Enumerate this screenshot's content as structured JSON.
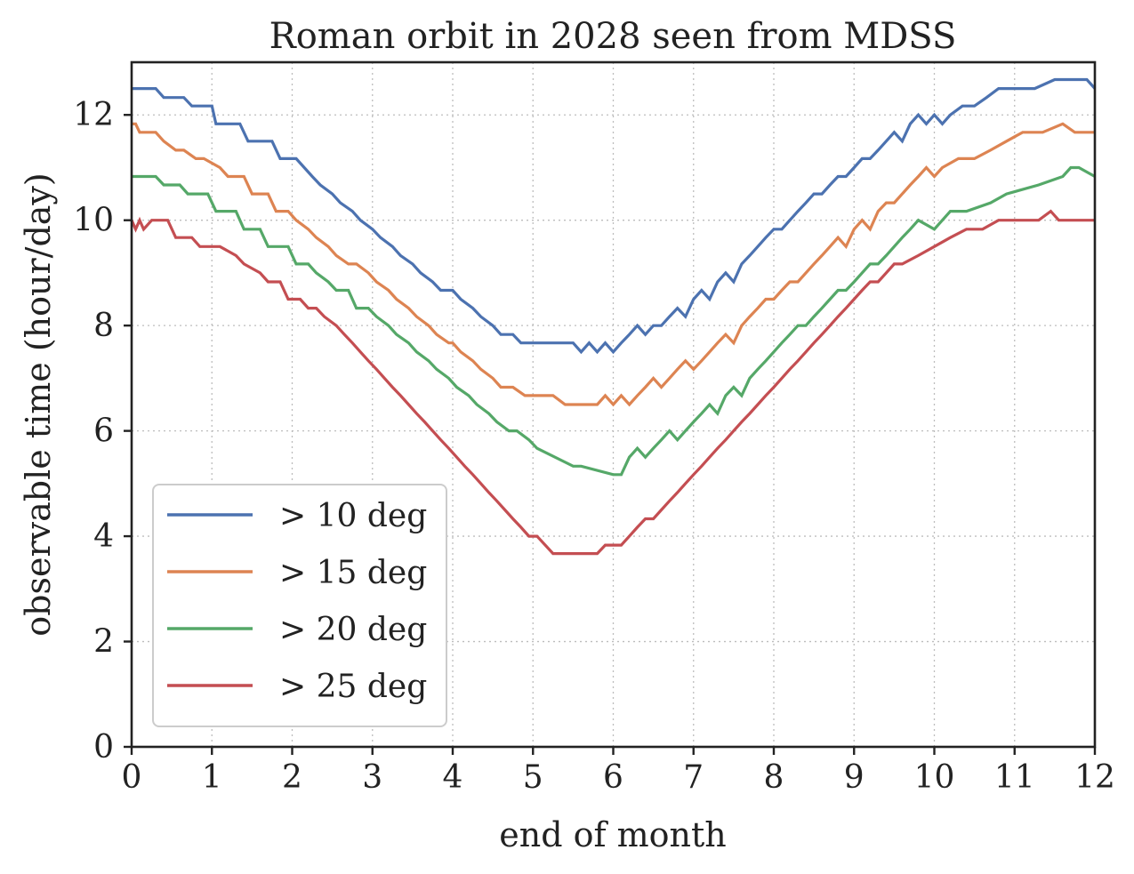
{
  "chart_data": {
    "type": "line",
    "title": "Roman orbit in 2028 seen from MDSS",
    "xlabel": "end of month",
    "ylabel": "observable time (hour/day)",
    "xlim": [
      0,
      12
    ],
    "ylim": [
      0,
      13
    ],
    "xticks": [
      0,
      1,
      2,
      3,
      4,
      5,
      6,
      7,
      8,
      9,
      10,
      11,
      12
    ],
    "yticks": [
      0,
      2,
      4,
      6,
      8,
      10,
      12
    ],
    "grid": true,
    "legend_position": "lower-left",
    "series": [
      {
        "name": "> 10 deg",
        "color": "#4c72b0",
        "x": [
          0,
          0.3,
          0.4,
          0.65,
          0.75,
          1.0,
          1.05,
          1.35,
          1.45,
          1.75,
          1.85,
          2.0,
          2.05,
          2.25,
          2.35,
          2.5,
          2.6,
          2.75,
          2.85,
          3.0,
          3.1,
          3.25,
          3.35,
          3.5,
          3.6,
          3.75,
          3.85,
          4.0,
          4.1,
          4.25,
          4.35,
          4.5,
          4.6,
          4.75,
          4.85,
          5.0,
          5.5,
          5.6,
          5.7,
          5.8,
          5.9,
          6.0,
          6.1,
          6.2,
          6.3,
          6.4,
          6.5,
          6.6,
          6.7,
          6.8,
          6.9,
          7.0,
          7.1,
          7.2,
          7.3,
          7.4,
          7.5,
          7.6,
          7.7,
          7.8,
          7.9,
          8.0,
          8.1,
          8.2,
          8.3,
          8.4,
          8.5,
          8.6,
          8.7,
          8.8,
          8.9,
          9.0,
          9.1,
          9.2,
          9.3,
          9.4,
          9.5,
          9.6,
          9.7,
          9.8,
          9.9,
          10.0,
          10.1,
          10.2,
          10.35,
          10.5,
          10.65,
          10.8,
          10.95,
          11.25,
          11.5,
          11.9,
          12.0
        ],
        "values": [
          12.5,
          12.5,
          12.33,
          12.33,
          12.17,
          12.17,
          11.83,
          11.83,
          11.5,
          11.5,
          11.17,
          11.17,
          11.17,
          10.83,
          10.67,
          10.5,
          10.33,
          10.17,
          10.0,
          9.83,
          9.67,
          9.5,
          9.33,
          9.17,
          9.0,
          8.83,
          8.67,
          8.67,
          8.5,
          8.33,
          8.17,
          8.0,
          7.83,
          7.83,
          7.67,
          7.67,
          7.67,
          7.5,
          7.67,
          7.5,
          7.67,
          7.5,
          7.67,
          7.83,
          8.0,
          7.83,
          8.0,
          8.0,
          8.17,
          8.33,
          8.17,
          8.5,
          8.67,
          8.5,
          8.83,
          9.0,
          8.83,
          9.17,
          9.33,
          9.5,
          9.67,
          9.83,
          9.83,
          10.0,
          10.17,
          10.33,
          10.5,
          10.5,
          10.67,
          10.83,
          10.83,
          11.0,
          11.17,
          11.17,
          11.33,
          11.5,
          11.67,
          11.5,
          11.83,
          12.0,
          11.83,
          12.0,
          11.83,
          12.0,
          12.17,
          12.17,
          12.33,
          12.5,
          12.5,
          12.5,
          12.67,
          12.67,
          12.5
        ]
      },
      {
        "name": "> 15 deg",
        "color": "#dd8452",
        "x": [
          0,
          0.05,
          0.1,
          0.3,
          0.4,
          0.55,
          0.65,
          0.8,
          0.9,
          1.1,
          1.2,
          1.4,
          1.5,
          1.7,
          1.8,
          1.95,
          2.05,
          2.2,
          2.3,
          2.45,
          2.55,
          2.7,
          2.8,
          2.95,
          3.05,
          3.2,
          3.3,
          3.45,
          3.55,
          3.7,
          3.8,
          3.95,
          4.0,
          4.1,
          4.25,
          4.35,
          4.5,
          4.6,
          4.75,
          4.9,
          5.0,
          5.25,
          5.4,
          5.8,
          5.9,
          6.0,
          6.1,
          6.2,
          6.3,
          6.4,
          6.5,
          6.6,
          6.7,
          6.8,
          6.9,
          7.0,
          7.1,
          7.2,
          7.3,
          7.4,
          7.5,
          7.6,
          7.7,
          7.8,
          7.9,
          8.0,
          8.1,
          8.2,
          8.3,
          8.4,
          8.5,
          8.6,
          8.7,
          8.8,
          8.9,
          9.0,
          9.1,
          9.2,
          9.3,
          9.4,
          9.5,
          9.6,
          9.7,
          9.8,
          9.9,
          10.0,
          10.1,
          10.3,
          10.5,
          10.7,
          10.9,
          11.1,
          11.35,
          11.6,
          11.75,
          12.0
        ],
        "values": [
          11.83,
          11.83,
          11.67,
          11.67,
          11.5,
          11.33,
          11.33,
          11.17,
          11.17,
          11.0,
          10.83,
          10.83,
          10.5,
          10.5,
          10.17,
          10.17,
          10.0,
          9.83,
          9.67,
          9.5,
          9.33,
          9.17,
          9.17,
          9.0,
          8.83,
          8.67,
          8.5,
          8.33,
          8.17,
          8.0,
          7.83,
          7.67,
          7.67,
          7.5,
          7.33,
          7.17,
          7.0,
          6.83,
          6.83,
          6.67,
          6.67,
          6.67,
          6.5,
          6.5,
          6.67,
          6.5,
          6.67,
          6.5,
          6.67,
          6.83,
          7.0,
          6.83,
          7.0,
          7.17,
          7.33,
          7.17,
          7.33,
          7.5,
          7.67,
          7.83,
          7.67,
          8.0,
          8.17,
          8.33,
          8.5,
          8.5,
          8.67,
          8.83,
          8.83,
          9.0,
          9.17,
          9.33,
          9.5,
          9.67,
          9.5,
          9.83,
          10.0,
          9.83,
          10.17,
          10.33,
          10.33,
          10.5,
          10.67,
          10.83,
          11.0,
          10.83,
          11.0,
          11.17,
          11.17,
          11.33,
          11.5,
          11.67,
          11.67,
          11.83,
          11.67,
          11.67
        ]
      },
      {
        "name": "> 20 deg",
        "color": "#55a868",
        "x": [
          0,
          0.3,
          0.4,
          0.6,
          0.7,
          0.95,
          1.05,
          1.3,
          1.4,
          1.6,
          1.7,
          1.95,
          2.05,
          2.2,
          2.3,
          2.45,
          2.55,
          2.7,
          2.8,
          2.95,
          3.05,
          3.2,
          3.3,
          3.45,
          3.55,
          3.7,
          3.8,
          3.95,
          4.05,
          4.2,
          4.3,
          4.45,
          4.55,
          4.7,
          4.8,
          4.95,
          5.05,
          5.5,
          5.6,
          6.0,
          6.1,
          6.2,
          6.3,
          6.4,
          6.5,
          6.6,
          6.7,
          6.8,
          6.9,
          7.0,
          7.1,
          7.2,
          7.3,
          7.4,
          7.5,
          7.6,
          7.7,
          7.8,
          7.9,
          8.0,
          8.1,
          8.2,
          8.3,
          8.4,
          8.5,
          8.6,
          8.7,
          8.8,
          8.9,
          9.0,
          9.1,
          9.2,
          9.3,
          9.4,
          9.5,
          9.6,
          9.7,
          9.8,
          10.0,
          10.2,
          10.4,
          10.7,
          10.9,
          11.3,
          11.6,
          11.7,
          11.8,
          12.0
        ],
        "values": [
          10.83,
          10.83,
          10.67,
          10.67,
          10.5,
          10.5,
          10.17,
          10.17,
          9.83,
          9.83,
          9.5,
          9.5,
          9.17,
          9.17,
          9.0,
          8.83,
          8.67,
          8.67,
          8.33,
          8.33,
          8.17,
          8.0,
          7.83,
          7.67,
          7.5,
          7.33,
          7.17,
          7.0,
          6.83,
          6.67,
          6.5,
          6.33,
          6.17,
          6.0,
          6.0,
          5.83,
          5.67,
          5.33,
          5.33,
          5.17,
          5.17,
          5.5,
          5.67,
          5.5,
          5.67,
          5.83,
          6.0,
          5.83,
          6.0,
          6.17,
          6.33,
          6.5,
          6.33,
          6.67,
          6.83,
          6.67,
          7.0,
          7.17,
          7.33,
          7.5,
          7.67,
          7.83,
          8.0,
          8.0,
          8.17,
          8.33,
          8.5,
          8.67,
          8.67,
          8.83,
          9.0,
          9.17,
          9.17,
          9.33,
          9.5,
          9.67,
          9.83,
          10.0,
          9.83,
          10.17,
          10.17,
          10.33,
          10.5,
          10.67,
          10.83,
          11.0,
          11.0,
          10.83
        ]
      },
      {
        "name": "> 25 deg",
        "color": "#c44e52",
        "x": [
          0,
          0.05,
          0.1,
          0.15,
          0.25,
          0.45,
          0.55,
          0.75,
          0.85,
          1.0,
          1.1,
          1.3,
          1.4,
          1.6,
          1.7,
          1.85,
          1.95,
          2.1,
          2.2,
          2.3,
          2.4,
          2.55,
          2.65,
          2.75,
          2.85,
          2.95,
          3.05,
          3.15,
          3.25,
          3.35,
          3.45,
          3.55,
          3.65,
          3.75,
          3.85,
          3.95,
          4.05,
          4.15,
          4.25,
          4.35,
          4.45,
          4.55,
          4.65,
          4.75,
          4.85,
          4.95,
          5.05,
          5.25,
          5.35,
          5.6,
          5.8,
          5.9,
          6.0,
          6.1,
          6.2,
          6.3,
          6.4,
          6.5,
          6.6,
          6.7,
          6.8,
          6.9,
          7.0,
          7.1,
          7.2,
          7.3,
          7.4,
          7.5,
          7.6,
          7.7,
          7.8,
          7.9,
          8.0,
          8.1,
          8.2,
          8.3,
          8.4,
          8.5,
          8.6,
          8.7,
          8.8,
          8.9,
          9.0,
          9.1,
          9.2,
          9.3,
          9.4,
          9.5,
          9.6,
          9.8,
          10.0,
          10.2,
          10.4,
          10.6,
          10.8,
          11.0,
          11.3,
          11.45,
          11.55,
          12.0
        ],
        "values": [
          10.0,
          9.83,
          10.0,
          9.83,
          10.0,
          10.0,
          9.67,
          9.67,
          9.5,
          9.5,
          9.5,
          9.33,
          9.17,
          9.0,
          8.83,
          8.83,
          8.5,
          8.5,
          8.33,
          8.33,
          8.17,
          8.0,
          7.83,
          7.67,
          7.5,
          7.33,
          7.17,
          7.0,
          6.83,
          6.67,
          6.5,
          6.33,
          6.17,
          6.0,
          5.83,
          5.67,
          5.5,
          5.33,
          5.17,
          5.0,
          4.83,
          4.67,
          4.5,
          4.33,
          4.17,
          4.0,
          4.0,
          3.67,
          3.67,
          3.67,
          3.67,
          3.83,
          3.83,
          3.83,
          4.0,
          4.17,
          4.33,
          4.33,
          4.5,
          4.67,
          4.83,
          5.0,
          5.17,
          5.33,
          5.5,
          5.67,
          5.83,
          6.0,
          6.17,
          6.33,
          6.5,
          6.67,
          6.83,
          7.0,
          7.17,
          7.33,
          7.5,
          7.67,
          7.83,
          8.0,
          8.17,
          8.33,
          8.5,
          8.67,
          8.83,
          8.83,
          9.0,
          9.17,
          9.17,
          9.33,
          9.5,
          9.67,
          9.83,
          9.83,
          10.0,
          10.0,
          10.0,
          10.17,
          10.0,
          10.0
        ]
      }
    ]
  }
}
